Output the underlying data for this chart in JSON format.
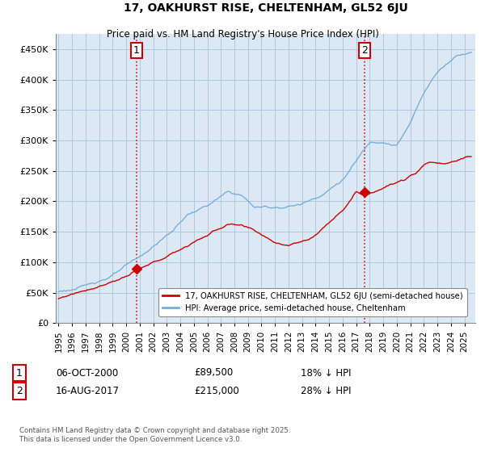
{
  "title": "17, OAKHURST RISE, CHELTENHAM, GL52 6JU",
  "subtitle": "Price paid vs. HM Land Registry's House Price Index (HPI)",
  "legend_line1": "17, OAKHURST RISE, CHELTENHAM, GL52 6JU (semi-detached house)",
  "legend_line2": "HPI: Average price, semi-detached house, Cheltenham",
  "annotation1_date": "06-OCT-2000",
  "annotation1_price": "£89,500",
  "annotation1_hpi": "18% ↓ HPI",
  "annotation2_date": "16-AUG-2017",
  "annotation2_price": "£215,000",
  "annotation2_hpi": "28% ↓ HPI",
  "sale1_year": 2000.76,
  "sale2_year": 2017.62,
  "sale1_price": 89500,
  "sale2_price": 215000,
  "line_color_red": "#cc0000",
  "line_color_blue": "#7aaed6",
  "background_color": "#ffffff",
  "plot_bg_color": "#dce9f5",
  "grid_color": "#b0c8e0",
  "footer": "Contains HM Land Registry data © Crown copyright and database right 2025.\nThis data is licensed under the Open Government Licence v3.0.",
  "ylim": [
    0,
    475000
  ],
  "xlim_start": 1994.8,
  "xlim_end": 2025.8
}
